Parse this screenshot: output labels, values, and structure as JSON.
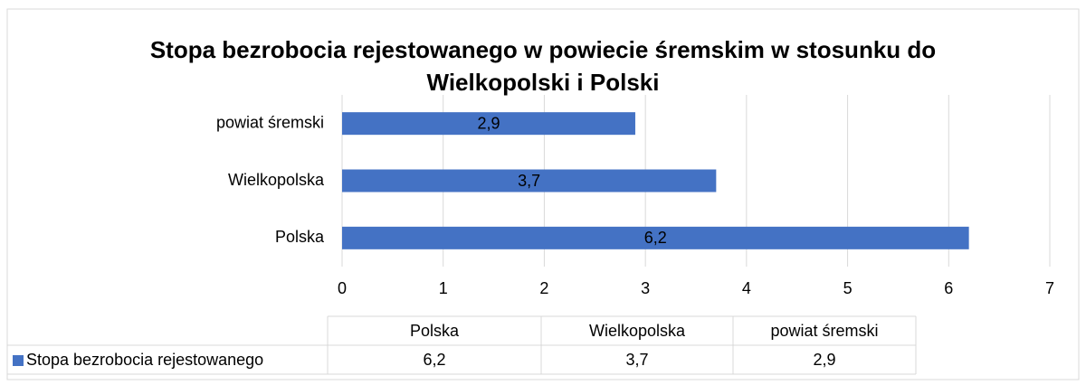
{
  "chart_data": {
    "type": "bar",
    "orientation": "horizontal",
    "title": "Stopa bezrobocia rejestowanego w powiecie śremskim w stosunku do Wielkopolski i Polski",
    "categories": [
      "Polska",
      "Wielkopolska",
      "powiat śremski"
    ],
    "series": [
      {
        "name": "Stopa bezrobocia rejestowanego",
        "color": "#4472c4",
        "values": [
          6.2,
          3.7,
          2.9
        ],
        "value_labels": [
          "6,2",
          "3,7",
          "2,9"
        ]
      }
    ],
    "xlim": [
      0,
      7
    ],
    "xticks": [
      0,
      1,
      2,
      3,
      4,
      5,
      6,
      7
    ],
    "grid": true,
    "data_table": true
  }
}
